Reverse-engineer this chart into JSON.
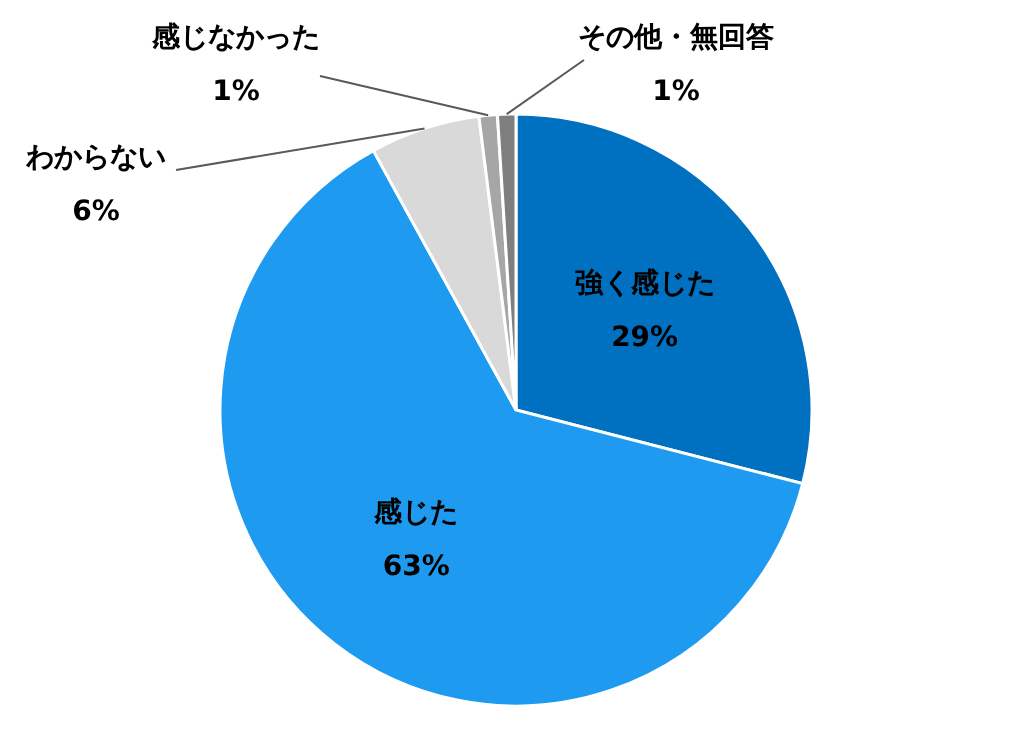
{
  "chart_data": {
    "type": "pie",
    "categories": [
      "強く感じた",
      "感じた",
      "わからない",
      "感じなかった",
      "その他・無回答"
    ],
    "values": [
      29,
      63,
      6,
      1,
      1
    ],
    "value_labels": [
      "29%",
      "63%",
      "6%",
      "1%",
      "1%"
    ],
    "colors": [
      "#0070c0",
      "#1e9bf0",
      "#d9d9d9",
      "#a6a6a6",
      "#7f7f7f"
    ]
  }
}
